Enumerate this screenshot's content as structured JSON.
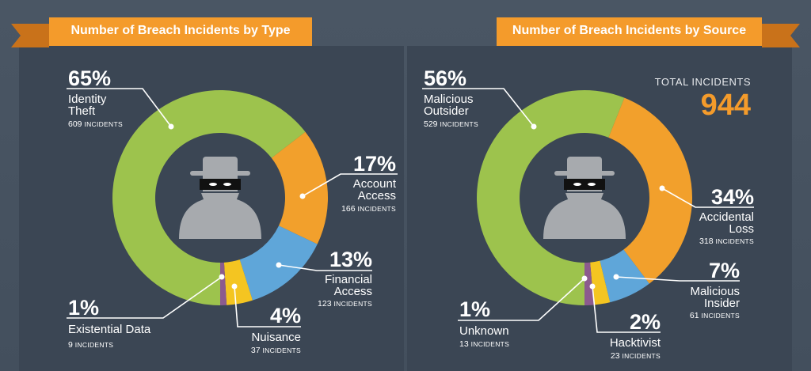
{
  "colors": {
    "green": "#9dc34d",
    "orange": "#f2a02c",
    "blue": "#5fa6d9",
    "yellow": "#f4c521",
    "purple": "#8c5b8e",
    "ribbon": "#f49b2b",
    "ribbon_dark": "#c9721a",
    "total": "#f49b2b",
    "figure": "#a7aaae"
  },
  "icons": [
    "spy-figure-icon",
    "spy-figure-icon"
  ],
  "total": {
    "label": "TOTAL INCIDENTS",
    "value": "944"
  },
  "incident_unit": "INCIDENTS",
  "chart_data": [
    {
      "type": "pie",
      "title": "Number of Breach Incidents by Type",
      "slices": [
        {
          "name": "Identity Theft",
          "label_lines": [
            "Identity",
            "Theft"
          ],
          "percent": "65%",
          "incidents": 609,
          "color": "#9dc34d"
        },
        {
          "name": "Account Access",
          "label_lines": [
            "Account",
            "Access"
          ],
          "percent": "17%",
          "incidents": 166,
          "color": "#f2a02c"
        },
        {
          "name": "Financial Access",
          "label_lines": [
            "Financial",
            "Access"
          ],
          "percent": "13%",
          "incidents": 123,
          "color": "#5fa6d9"
        },
        {
          "name": "Nuisance",
          "label_lines": [
            "Nuisance"
          ],
          "percent": "4%",
          "incidents": 37,
          "color": "#f4c521"
        },
        {
          "name": "Existential Data",
          "label_lines": [
            "Existential Data"
          ],
          "percent": "1%",
          "incidents": 9,
          "color": "#8c5b8e"
        }
      ]
    },
    {
      "type": "pie",
      "title": "Number of Breach Incidents by Source",
      "slices": [
        {
          "name": "Malicious Outsider",
          "label_lines": [
            "Malicious",
            "Outsider"
          ],
          "percent": "56%",
          "incidents": 529,
          "color": "#9dc34d"
        },
        {
          "name": "Accidental Loss",
          "label_lines": [
            "Accidental",
            "Loss"
          ],
          "percent": "34%",
          "incidents": 318,
          "color": "#f2a02c"
        },
        {
          "name": "Malicious Insider",
          "label_lines": [
            "Malicious",
            "Insider"
          ],
          "percent": "7%",
          "incidents": 61,
          "color": "#5fa6d9"
        },
        {
          "name": "Hacktivist",
          "label_lines": [
            "Hacktivist"
          ],
          "percent": "2%",
          "incidents": 23,
          "color": "#f4c521"
        },
        {
          "name": "Unknown",
          "label_lines": [
            "Unknown"
          ],
          "percent": "1%",
          "incidents": 13,
          "color": "#8c5b8e"
        }
      ]
    }
  ]
}
